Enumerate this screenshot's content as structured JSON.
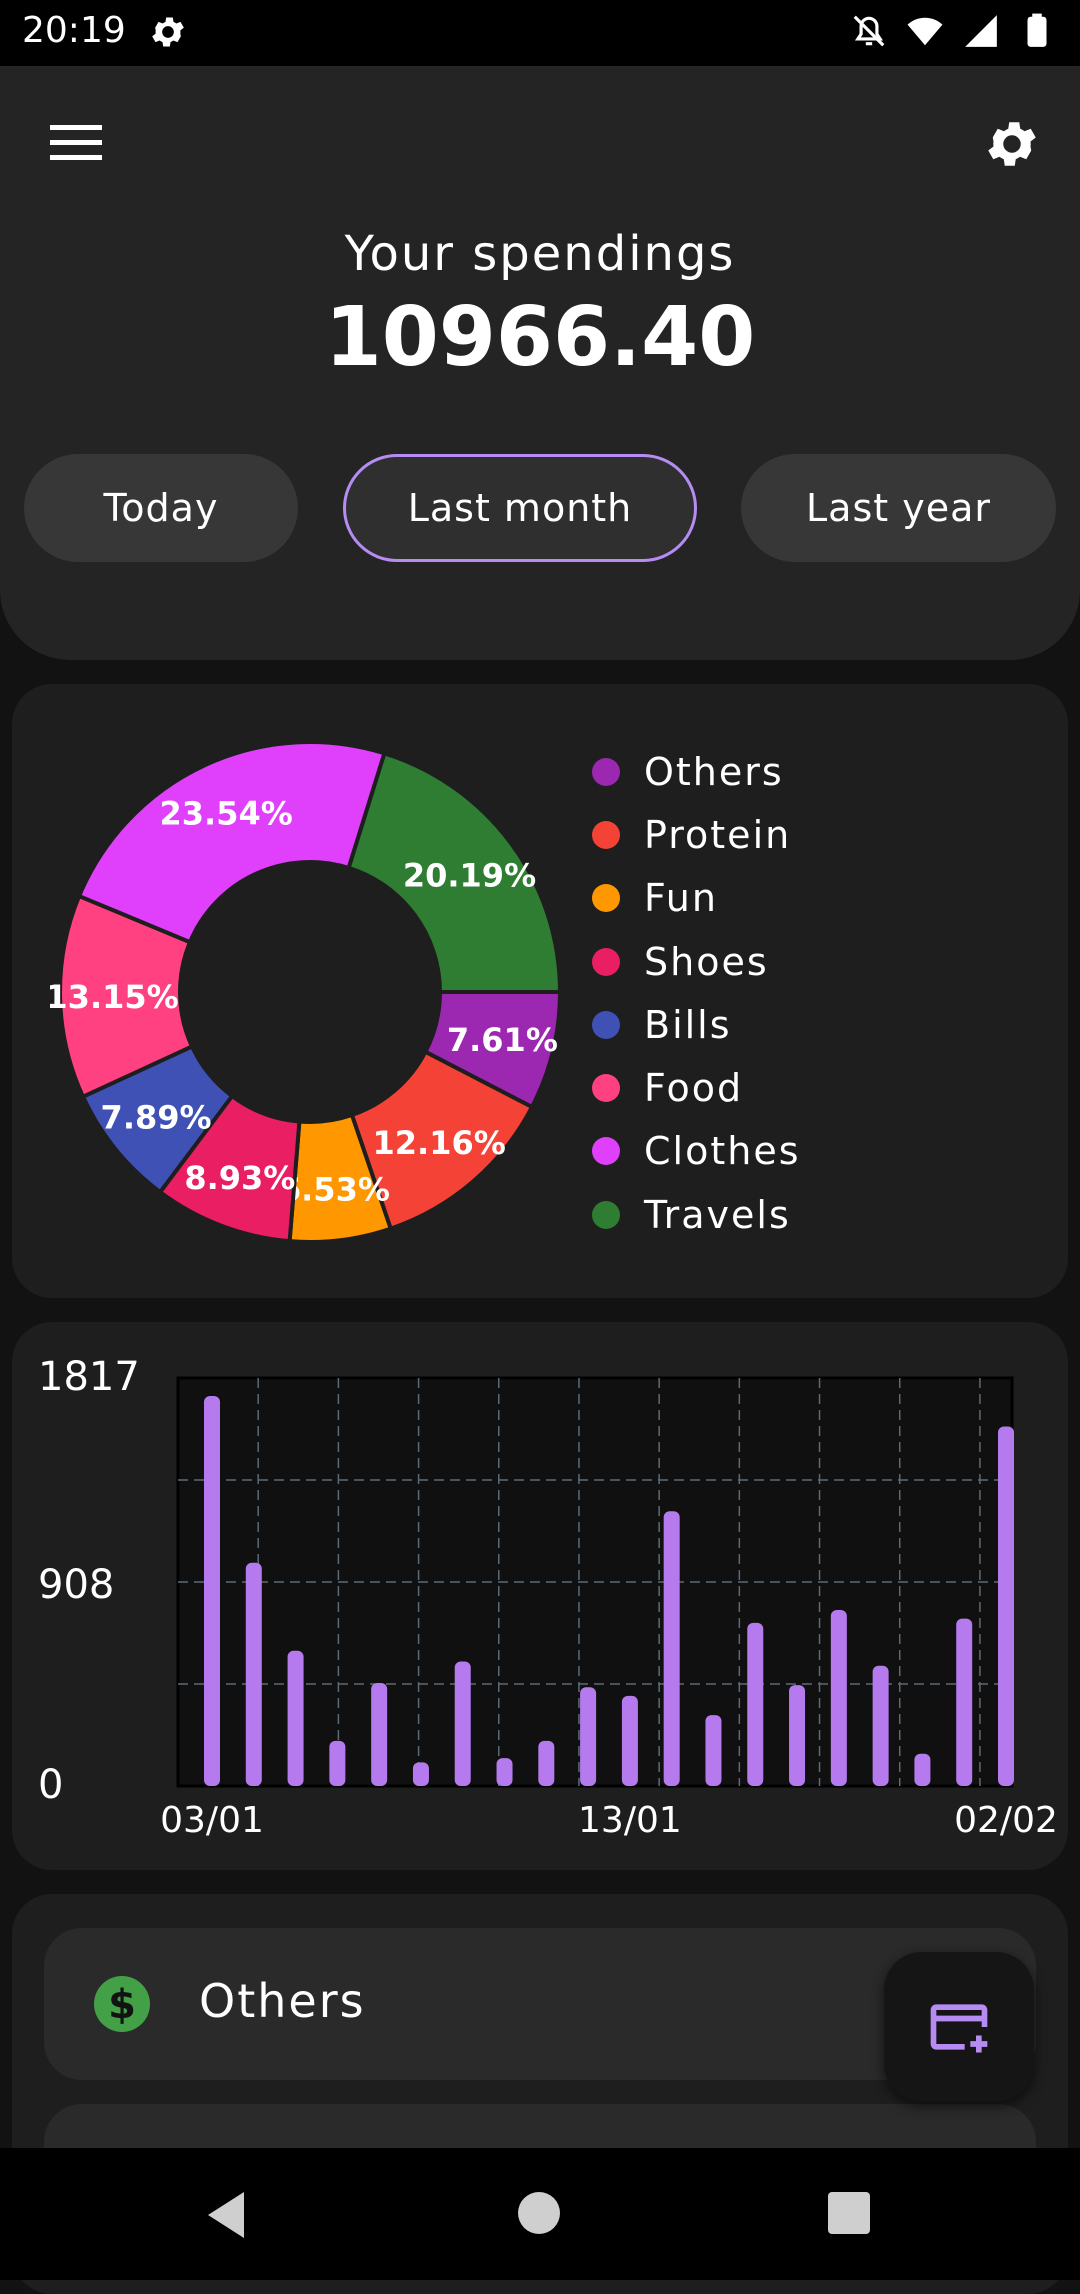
{
  "status_bar": {
    "time": "20:19",
    "icons": [
      "gear-icon",
      "notifications-off-icon",
      "wifi-icon",
      "signal-icon",
      "battery-icon"
    ]
  },
  "header": {
    "menu_icon": "menu-icon",
    "settings_icon": "gear-icon",
    "title": "Your spendings",
    "total": "10966.40",
    "periods": [
      {
        "label": "Today",
        "selected": false
      },
      {
        "label": "Last month",
        "selected": true
      },
      {
        "label": "Last year",
        "selected": false
      }
    ]
  },
  "legend": [
    {
      "label": "Others",
      "color": "#9c27b0"
    },
    {
      "label": "Protein",
      "color": "#f44336"
    },
    {
      "label": "Fun",
      "color": "#ff9800"
    },
    {
      "label": "Shoes",
      "color": "#e91e63"
    },
    {
      "label": "Bills",
      "color": "#3f51b5"
    },
    {
      "label": "Food",
      "color": "#ff4081"
    },
    {
      "label": "Clothes",
      "color": "#e040fb"
    },
    {
      "label": "Travels",
      "color": "#2e7d32"
    }
  ],
  "chart_data": [
    {
      "type": "pie",
      "title": "",
      "slices": [
        {
          "label": "Others",
          "value": 7.61,
          "display": "7.61%",
          "color": "#9c27b0"
        },
        {
          "label": "Protein",
          "value": 12.16,
          "display": "12.16%",
          "color": "#f44336"
        },
        {
          "label": "Fun",
          "value": 6.53,
          "display": "6.53%",
          "color": "#ff9800"
        },
        {
          "label": "Shoes",
          "value": 8.93,
          "display": "8.93%",
          "color": "#e91e63"
        },
        {
          "label": "Bills",
          "value": 7.89,
          "display": "7.89%",
          "color": "#3f51b5"
        },
        {
          "label": "Food",
          "value": 13.15,
          "display": "13.15%",
          "color": "#ff4081"
        },
        {
          "label": "Clothes",
          "value": 23.54,
          "display": "23.54%",
          "color": "#e040fb"
        },
        {
          "label": "Travels",
          "value": 20.19,
          "display": "20.19%",
          "color": "#2e7d32"
        }
      ],
      "donut": true
    },
    {
      "type": "bar",
      "title": "",
      "xlabel": "",
      "ylabel": "",
      "ylim": [
        0,
        1817
      ],
      "yticks": [
        "1817",
        "908",
        "0"
      ],
      "xticks": [
        "03/01",
        "13/01",
        "02/02"
      ],
      "grid": true,
      "bar_color": "#b57bee",
      "values": [
        1817,
        1040,
        630,
        210,
        480,
        110,
        580,
        130,
        210,
        460,
        420,
        1280,
        330,
        760,
        470,
        820,
        560,
        150,
        780,
        1675
      ]
    }
  ],
  "list": {
    "items": [
      {
        "label": "Others",
        "icon": "dollar-icon"
      }
    ]
  },
  "fab": {
    "icon": "add-card-icon"
  },
  "nav": {
    "back": "back-icon",
    "home": "home-icon",
    "recent": "recents-icon"
  }
}
